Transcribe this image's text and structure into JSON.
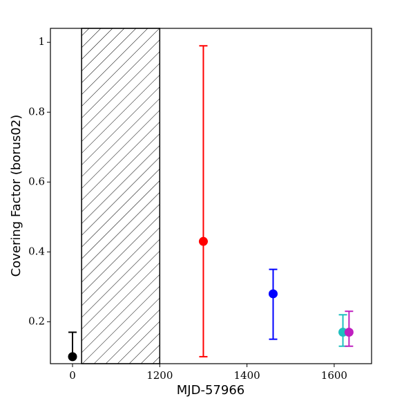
{
  "chart_data": {
    "type": "errorbar_scatter",
    "xlabel": "MJD-57966",
    "ylabel": "Covering Factor (borus02)",
    "xticks": [
      0,
      1200,
      1400,
      1600
    ],
    "xlim": [
      -310,
      1680
    ],
    "ylim": [
      0.08,
      1.04
    ],
    "yticks": [
      0.2,
      0.4,
      0.6,
      0.8,
      1.0
    ],
    "shaded_region": [
      125,
      1200
    ],
    "series": [
      {
        "color": "#000000",
        "x": [
          0
        ],
        "values": [
          0.1
        ],
        "err_low": [
          0
        ],
        "err_high": [
          0.07
        ]
      },
      {
        "color": "#ff0000",
        "x": [
          1300
        ],
        "values": [
          0.43
        ],
        "err_low": [
          0.33
        ],
        "err_high": [
          0.56
        ]
      },
      {
        "color": "#0000ff",
        "x": [
          1460
        ],
        "values": [
          0.28
        ],
        "err_low": [
          0.13
        ],
        "err_high": [
          0.07
        ]
      },
      {
        "color": "#1fbfbf",
        "x": [
          1620
        ],
        "values": [
          0.17
        ],
        "err_low": [
          0.04
        ],
        "err_high": [
          0.05
        ]
      },
      {
        "color": "#bf1fbf",
        "x": [
          1634
        ],
        "values": [
          0.17
        ],
        "err_low": [
          0.04
        ],
        "err_high": [
          0.06
        ]
      }
    ]
  }
}
